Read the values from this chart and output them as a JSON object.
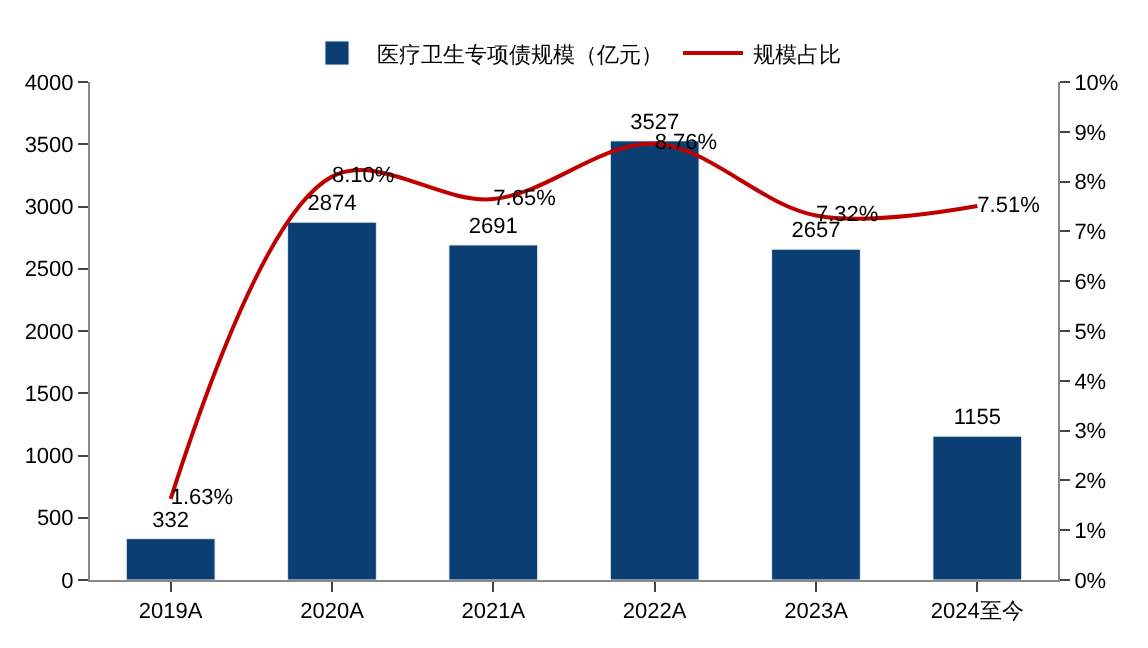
{
  "chart_data": {
    "type": "bar",
    "categories": [
      "2019A",
      "2020A",
      "2021A",
      "2022A",
      "2023A",
      "2024至今"
    ],
    "series": [
      {
        "name": "医疗卫生专项债规模（亿元）",
        "color": "#0b3f73",
        "values": [
          332,
          2874,
          2691,
          3527,
          2657,
          1155
        ],
        "value_labels": [
          "332",
          "2874",
          "2691",
          "3527",
          "2657",
          "1155"
        ]
      },
      {
        "name": "规模占比",
        "type": "line",
        "axis": "y2",
        "color": "#c00000",
        "marker": "none",
        "line_style": "solid",
        "values": [
          1.63,
          8.1,
          7.65,
          8.76,
          7.32,
          7.51
        ],
        "value_labels": [
          "1.63%",
          "8.10%",
          "7.65%",
          "8.76%",
          "7.32%",
          "7.51%"
        ]
      }
    ],
    "ylim": [
      0,
      4000
    ],
    "yticks": [
      0,
      500,
      1000,
      1500,
      2000,
      2500,
      3000,
      3500,
      4000
    ],
    "y2lim": [
      0,
      10
    ],
    "y2ticks": [
      {
        "value": 0,
        "label": "0%"
      },
      {
        "value": 1,
        "label": "1%"
      },
      {
        "value": 2,
        "label": "2%"
      },
      {
        "value": 3,
        "label": "3%"
      },
      {
        "value": 4,
        "label": "4%"
      },
      {
        "value": 5,
        "label": "5%"
      },
      {
        "value": 6,
        "label": "6%"
      },
      {
        "value": 7,
        "label": "7%"
      },
      {
        "value": 8,
        "label": "8%"
      },
      {
        "value": 9,
        "label": "9%"
      },
      {
        "value": 10,
        "label": "10%"
      }
    ],
    "legend": "top"
  }
}
